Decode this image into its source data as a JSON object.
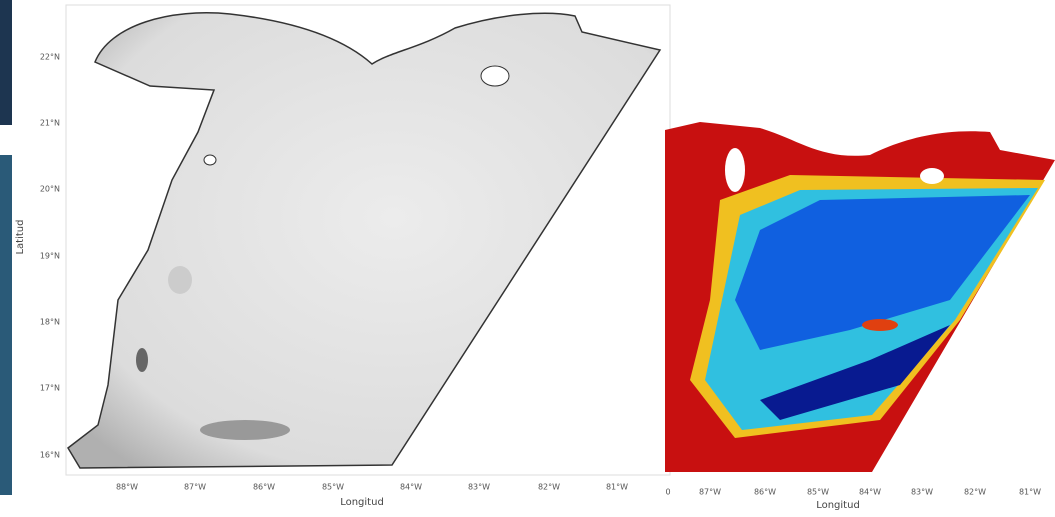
{
  "left_map": {
    "y_ticks": [
      "22°N",
      "21°N",
      "20°N",
      "19°N",
      "18°N",
      "17°N",
      "16°N"
    ],
    "x_ticks": [
      "88°W",
      "87°W",
      "86°W",
      "85°W",
      "84°W",
      "83°W",
      "82°W",
      "81°W"
    ],
    "x_label": "Longitud",
    "y_label": "Latitud"
  },
  "right_map": {
    "x_ticks": [
      "0",
      "87°W",
      "86°W",
      "85°W",
      "84°W",
      "83°W",
      "82°W",
      "81°W"
    ],
    "x_label": "Longitud"
  }
}
